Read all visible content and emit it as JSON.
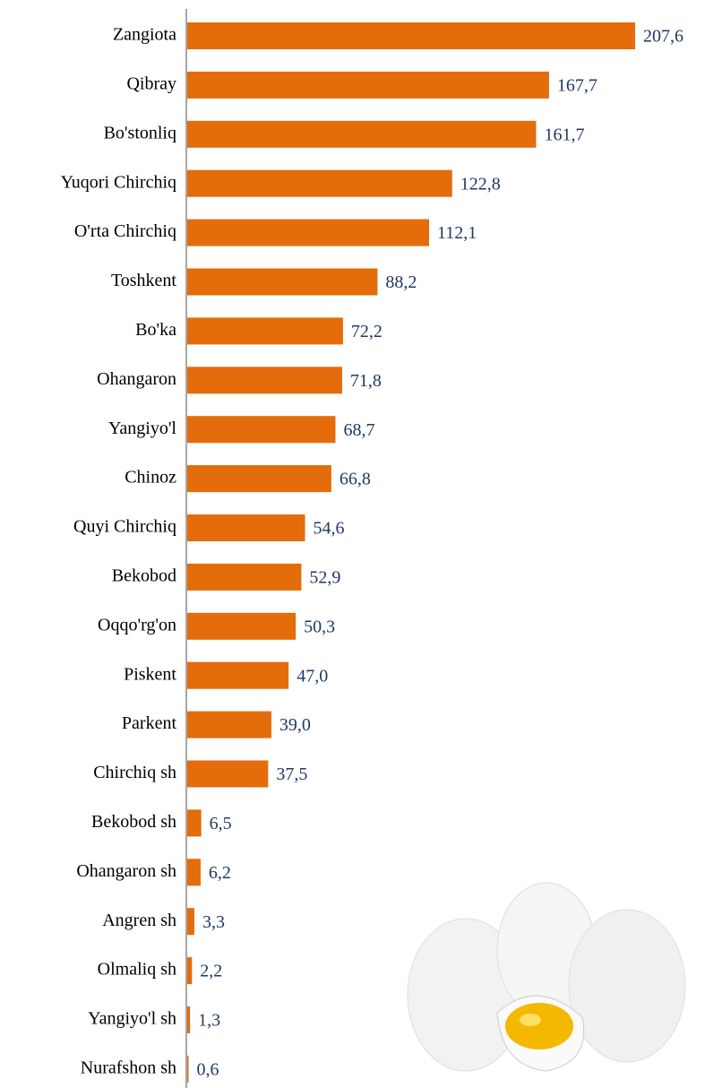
{
  "chart_data": {
    "type": "bar",
    "orientation": "horizontal",
    "categories": [
      "Zangiota",
      "Qibray",
      "Bo'stonliq",
      "Yuqori Chirchiq",
      "O'rta Chirchiq",
      "Toshkent",
      "Bo'ka",
      "Ohangaron",
      "Yangiyo'l",
      "Chinoz",
      "Quyi Chirchiq",
      "Bekobod",
      "Oqqo'rg'on",
      "Piskent",
      "Parkent",
      "Chirchiq sh",
      "Bekobod sh",
      "Ohangaron sh",
      "Angren sh",
      "Olmaliq sh",
      "Yangiyo'l sh",
      "Nurafshon sh"
    ],
    "values": [
      207.6,
      167.7,
      161.7,
      122.8,
      112.1,
      88.2,
      72.2,
      71.8,
      68.7,
      66.8,
      54.6,
      52.9,
      50.3,
      47.0,
      39.0,
      37.5,
      6.5,
      6.2,
      3.3,
      2.2,
      1.3,
      0.6
    ],
    "value_labels": [
      "207,6",
      "167,7",
      "161,7",
      "122,8",
      "112,1",
      "88,2",
      "72,2",
      "71,8",
      "68,7",
      "66,8",
      "54,6",
      "52,9",
      "50,3",
      "47,0",
      "39,0",
      "37,5",
      "6,5",
      "6,2",
      "3,3",
      "2,2",
      "1,3",
      "0,6"
    ],
    "color": "#e46c0a"
  }
}
